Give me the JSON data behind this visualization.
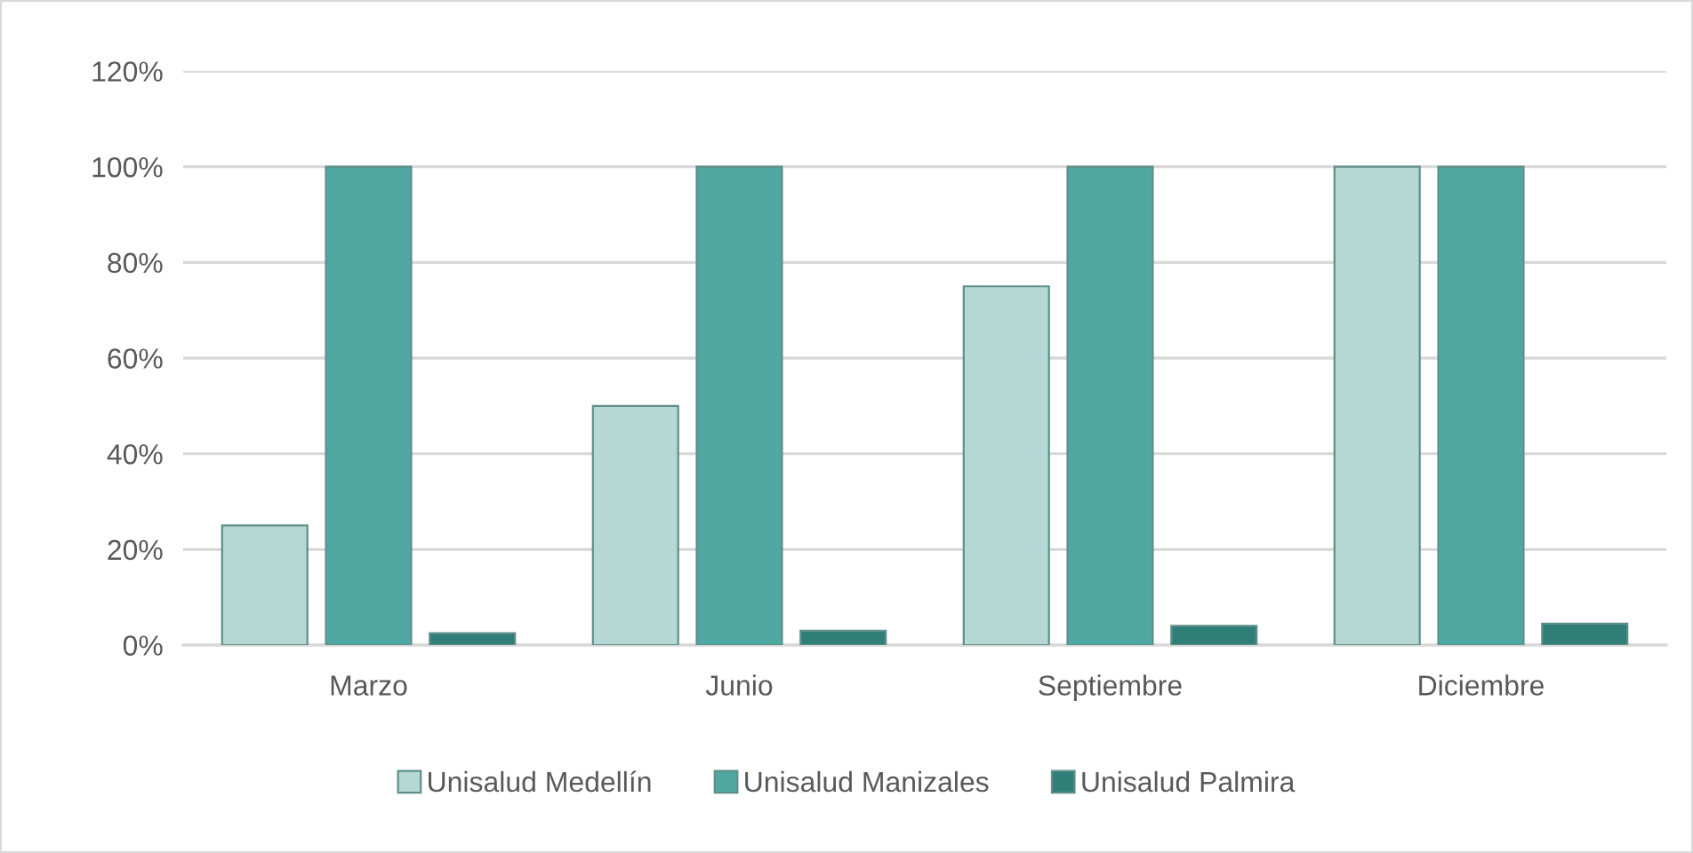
{
  "chart_data": {
    "type": "bar",
    "categories": [
      "Marzo",
      "Junio",
      "Septiembre",
      "Diciembre"
    ],
    "series": [
      {
        "name": "Unisalud Medellín",
        "color": "#b5d8d4",
        "values": [
          25,
          50,
          75,
          100
        ]
      },
      {
        "name": "Unisalud Manizales",
        "color": "#4fa9a2",
        "values": [
          100,
          100,
          100,
          100
        ]
      },
      {
        "name": "Unisalud Palmira",
        "color": "#2f7f78",
        "values": [
          2.5,
          3,
          4,
          4.5
        ]
      }
    ],
    "ylim": [
      0,
      120
    ],
    "yticks": [
      {
        "value": 0,
        "label": "0%"
      },
      {
        "value": 20,
        "label": "20%"
      },
      {
        "value": 40,
        "label": "40%"
      },
      {
        "value": 60,
        "label": "60%"
      },
      {
        "value": 80,
        "label": "80%"
      },
      {
        "value": 100,
        "label": "100%"
      },
      {
        "value": 120,
        "label": "120%"
      }
    ],
    "grid": "y",
    "legend": "bottom"
  }
}
